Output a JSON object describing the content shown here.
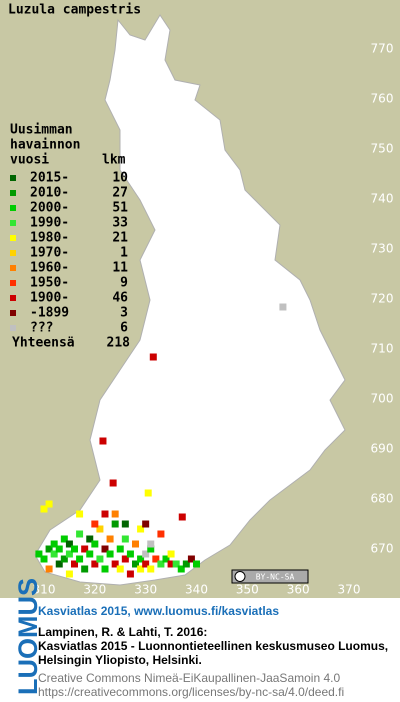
{
  "title": "Luzula campestris",
  "legend": {
    "header": [
      "Uusimman",
      "havainnon",
      "vuosi"
    ],
    "count_header": "lkm",
    "entries": [
      {
        "label": "2015-",
        "count": 10,
        "color": "#006400"
      },
      {
        "label": "2010-",
        "count": 27,
        "color": "#009a00"
      },
      {
        "label": "2000-",
        "count": 51,
        "color": "#00cc00"
      },
      {
        "label": "1990-",
        "count": 33,
        "color": "#33e633"
      },
      {
        "label": "1980-",
        "count": 21,
        "color": "#ffff00"
      },
      {
        "label": "1970-",
        "count": 1,
        "color": "#ffd200"
      },
      {
        "label": "1960-",
        "count": 11,
        "color": "#ff8000"
      },
      {
        "label": "1950-",
        "count": 9,
        "color": "#ff3000"
      },
      {
        "label": "1900-",
        "count": 46,
        "color": "#cc0000"
      },
      {
        "label": "-1899",
        "count": 3,
        "color": "#800000"
      },
      {
        "label": "???",
        "count": 6,
        "color": "#c0c0c0"
      }
    ],
    "total_label": "Yhteensä",
    "total": 218
  },
  "map": {
    "xlim": [
      310,
      370
    ],
    "ylim": [
      670,
      770
    ],
    "xticks": [
      310,
      320,
      330,
      340,
      350,
      360,
      370
    ],
    "yticks": [
      670,
      680,
      690,
      700,
      710,
      720,
      730,
      740,
      750,
      760,
      770
    ],
    "points": [
      [
        309,
        669,
        2
      ],
      [
        310,
        668,
        2
      ],
      [
        311,
        670,
        1
      ],
      [
        312,
        669,
        3
      ],
      [
        312,
        671,
        2
      ],
      [
        313,
        667,
        0
      ],
      [
        313,
        670,
        2
      ],
      [
        314,
        668,
        1
      ],
      [
        314,
        672,
        2
      ],
      [
        315,
        669,
        3
      ],
      [
        315,
        671,
        0
      ],
      [
        316,
        667,
        8
      ],
      [
        316,
        670,
        2
      ],
      [
        317,
        668,
        2
      ],
      [
        317,
        673,
        3
      ],
      [
        318,
        666,
        1
      ],
      [
        318,
        670,
        8
      ],
      [
        319,
        669,
        2
      ],
      [
        319,
        672,
        0
      ],
      [
        320,
        667,
        8
      ],
      [
        320,
        671,
        2
      ],
      [
        321,
        668,
        3
      ],
      [
        321,
        674,
        5
      ],
      [
        322,
        666,
        2
      ],
      [
        322,
        670,
        9
      ],
      [
        323,
        669,
        2
      ],
      [
        323,
        672,
        6
      ],
      [
        324,
        667,
        8
      ],
      [
        324,
        675,
        1
      ],
      [
        325,
        670,
        2
      ],
      [
        325,
        666,
        4
      ],
      [
        326,
        668,
        8
      ],
      [
        326,
        672,
        3
      ],
      [
        327,
        669,
        2
      ],
      [
        327,
        665,
        8
      ],
      [
        328,
        667,
        1
      ],
      [
        328,
        671,
        6
      ],
      [
        329,
        668,
        2
      ],
      [
        329,
        666,
        4
      ],
      [
        330,
        669,
        10
      ],
      [
        330,
        667,
        8
      ],
      [
        331,
        670,
        2
      ],
      [
        331,
        666,
        4
      ],
      [
        332,
        668,
        7
      ],
      [
        333,
        667,
        3
      ],
      [
        333,
        673,
        7
      ],
      [
        334,
        668,
        2
      ],
      [
        335,
        667,
        8
      ],
      [
        335,
        669,
        4
      ],
      [
        336,
        667,
        3
      ],
      [
        337,
        666,
        2
      ],
      [
        338,
        667,
        1
      ],
      [
        339,
        668,
        9
      ],
      [
        340,
        667,
        2
      ],
      [
        326,
        675,
        0
      ],
      [
        322,
        677,
        8
      ],
      [
        317,
        677,
        4
      ],
      [
        320,
        675,
        7
      ],
      [
        324,
        677,
        6
      ],
      [
        329,
        674,
        4
      ],
      [
        330,
        675,
        9
      ],
      [
        331,
        671,
        10
      ],
      [
        315,
        665,
        4
      ],
      [
        311,
        666,
        6
      ],
      [
        331.5,
        708.4,
        8
      ],
      [
        357,
        718.4,
        10
      ],
      [
        321.6,
        691.6,
        8
      ],
      [
        323.6,
        683.2,
        8
      ],
      [
        330.5,
        681.2,
        4
      ],
      [
        337.2,
        676.4,
        8
      ],
      [
        310,
        678,
        4
      ],
      [
        311,
        679,
        4
      ]
    ]
  },
  "cc_badge": "BY-NC-SA",
  "logo": "LUOMUS",
  "footer": {
    "link": "Kasviatlas 2015, www.luomus.fi/kasviatlas",
    "citation": [
      "Lampinen, R. & Lahti, T. 2016:",
      "Kasviatlas 2015 - Luonnontieteellinen keskusmuseo Luomus,",
      "Helsingin Yliopisto, Helsinki."
    ],
    "license": [
      "Creative Commons Nimeä-EiKaupallinen-JaaSamoin 4.0",
      "https://creativecommons.org/licenses/by-nc-sa/4.0/deed.fi"
    ]
  }
}
